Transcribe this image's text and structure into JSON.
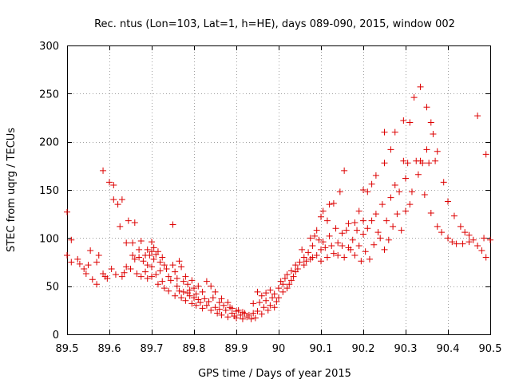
{
  "chart_data": {
    "type": "scatter",
    "title": "Rec. ntus (Lon=103, Lat=1, h=HE), days 089-090, 2015, window 002",
    "xlabel": "GPS time / Days of year 2015",
    "ylabel": "STEC from uqrg / TECUs",
    "xlim": [
      89.5,
      90.5
    ],
    "ylim": [
      0,
      300
    ],
    "xticks": [
      89.5,
      89.6,
      89.7,
      89.8,
      89.9,
      90,
      90.1,
      90.2,
      90.3,
      90.4,
      90.5
    ],
    "xtick_labels": [
      "89.5",
      "89.6",
      "89.7",
      "89.8",
      "89.9",
      "90",
      "90.1",
      "90.2",
      "90.3",
      "90.4",
      "90.5"
    ],
    "yticks": [
      0,
      50,
      100,
      150,
      200,
      250,
      300
    ],
    "ytick_labels": [
      "0",
      "50",
      "100",
      "150",
      "200",
      "250",
      "300"
    ],
    "grid": true,
    "marker": "+",
    "color": "#dd0000",
    "series": [
      {
        "points": [
          [
            89.5,
            127
          ],
          [
            89.5,
            82
          ],
          [
            89.51,
            98
          ],
          [
            89.51,
            75
          ],
          [
            89.525,
            78
          ],
          [
            89.53,
            73
          ],
          [
            89.54,
            68
          ],
          [
            89.545,
            63
          ],
          [
            89.55,
            72
          ],
          [
            89.555,
            87
          ],
          [
            89.56,
            57
          ],
          [
            89.57,
            52
          ],
          [
            89.57,
            75
          ],
          [
            89.575,
            82
          ],
          [
            89.585,
            170
          ],
          [
            89.585,
            63
          ],
          [
            89.59,
            60
          ],
          [
            89.595,
            58
          ],
          [
            89.6,
            158
          ],
          [
            89.605,
            68
          ],
          [
            89.61,
            155
          ],
          [
            89.61,
            140
          ],
          [
            89.615,
            62
          ],
          [
            89.62,
            135
          ],
          [
            89.625,
            112
          ],
          [
            89.63,
            140
          ],
          [
            89.63,
            60
          ],
          [
            89.635,
            64
          ],
          [
            89.64,
            70
          ],
          [
            89.64,
            95
          ],
          [
            89.645,
            118
          ],
          [
            89.65,
            68
          ],
          [
            89.655,
            95
          ],
          [
            89.655,
            82
          ],
          [
            89.66,
            116
          ],
          [
            89.66,
            78
          ],
          [
            89.665,
            63
          ],
          [
            89.67,
            80
          ],
          [
            89.67,
            88
          ],
          [
            89.675,
            60
          ],
          [
            89.675,
            97
          ],
          [
            89.68,
            76
          ],
          [
            89.685,
            82
          ],
          [
            89.685,
            65
          ],
          [
            89.69,
            88
          ],
          [
            89.69,
            72
          ],
          [
            89.69,
            58
          ],
          [
            89.695,
            82
          ],
          [
            89.7,
            96
          ],
          [
            89.7,
            86
          ],
          [
            89.7,
            70
          ],
          [
            89.7,
            60
          ],
          [
            89.705,
            90
          ],
          [
            89.705,
            78
          ],
          [
            89.71,
            83
          ],
          [
            89.71,
            62
          ],
          [
            89.715,
            86
          ],
          [
            89.715,
            52
          ],
          [
            89.72,
            75
          ],
          [
            89.72,
            66
          ],
          [
            89.725,
            80
          ],
          [
            89.725,
            55
          ],
          [
            89.73,
            72
          ],
          [
            89.73,
            48
          ],
          [
            89.735,
            68
          ],
          [
            89.74,
            60
          ],
          [
            89.74,
            45
          ],
          [
            89.745,
            56
          ],
          [
            89.75,
            114
          ],
          [
            89.75,
            72
          ],
          [
            89.755,
            65
          ],
          [
            89.755,
            40
          ],
          [
            89.76,
            58
          ],
          [
            89.76,
            50
          ],
          [
            89.765,
            76
          ],
          [
            89.765,
            45
          ],
          [
            89.77,
            70
          ],
          [
            89.77,
            38
          ],
          [
            89.775,
            55
          ],
          [
            89.775,
            44
          ],
          [
            89.78,
            60
          ],
          [
            89.78,
            35
          ],
          [
            89.785,
            52
          ],
          [
            89.785,
            43
          ],
          [
            89.79,
            46
          ],
          [
            89.79,
            40
          ],
          [
            89.795,
            56
          ],
          [
            89.795,
            32
          ],
          [
            89.8,
            48
          ],
          [
            89.8,
            38
          ],
          [
            89.805,
            42
          ],
          [
            89.805,
            30
          ],
          [
            89.81,
            50
          ],
          [
            89.81,
            36
          ],
          [
            89.815,
            33
          ],
          [
            89.82,
            44
          ],
          [
            89.82,
            27
          ],
          [
            89.825,
            37
          ],
          [
            89.83,
            55
          ],
          [
            89.83,
            30
          ],
          [
            89.835,
            34
          ],
          [
            89.84,
            50
          ],
          [
            89.84,
            25
          ],
          [
            89.845,
            38
          ],
          [
            89.85,
            44
          ],
          [
            89.85,
            28
          ],
          [
            89.855,
            22
          ],
          [
            89.86,
            33
          ],
          [
            89.86,
            26
          ],
          [
            89.865,
            37
          ],
          [
            89.865,
            20
          ],
          [
            89.87,
            30
          ],
          [
            89.875,
            25
          ],
          [
            89.88,
            33
          ],
          [
            89.88,
            18
          ],
          [
            89.885,
            28
          ],
          [
            89.89,
            22
          ],
          [
            89.89,
            27
          ],
          [
            89.895,
            19
          ],
          [
            89.9,
            24
          ],
          [
            89.9,
            17
          ],
          [
            89.905,
            25
          ],
          [
            89.91,
            20
          ],
          [
            89.915,
            23
          ],
          [
            89.915,
            16
          ],
          [
            89.92,
            22
          ],
          [
            89.925,
            18
          ],
          [
            89.93,
            20
          ],
          [
            89.935,
            16
          ],
          [
            89.94,
            32
          ],
          [
            89.94,
            22
          ],
          [
            89.945,
            17
          ],
          [
            89.95,
            44
          ],
          [
            89.95,
            24
          ],
          [
            89.955,
            33
          ],
          [
            89.96,
            40
          ],
          [
            89.96,
            21
          ],
          [
            89.965,
            28
          ],
          [
            89.97,
            43
          ],
          [
            89.97,
            35
          ],
          [
            89.975,
            25
          ],
          [
            89.98,
            46
          ],
          [
            89.98,
            30
          ],
          [
            89.985,
            38
          ],
          [
            89.99,
            42
          ],
          [
            89.99,
            28
          ],
          [
            89.995,
            34
          ],
          [
            90.0,
            48
          ],
          [
            90.0,
            38
          ],
          [
            90.005,
            55
          ],
          [
            90.01,
            52
          ],
          [
            90.01,
            44
          ],
          [
            90.015,
            58
          ],
          [
            90.02,
            48
          ],
          [
            90.02,
            62
          ],
          [
            90.025,
            52
          ],
          [
            90.03,
            56
          ],
          [
            90.03,
            66
          ],
          [
            90.035,
            60
          ],
          [
            90.04,
            72
          ],
          [
            90.04,
            65
          ],
          [
            90.045,
            68
          ],
          [
            90.05,
            75
          ],
          [
            90.055,
            88
          ],
          [
            90.06,
            80
          ],
          [
            90.06,
            72
          ],
          [
            90.065,
            76
          ],
          [
            90.07,
            85
          ],
          [
            90.075,
            100
          ],
          [
            90.075,
            78
          ],
          [
            90.08,
            92
          ],
          [
            90.08,
            80
          ],
          [
            90.085,
            102
          ],
          [
            90.09,
            108
          ],
          [
            90.09,
            82
          ],
          [
            90.095,
            98
          ],
          [
            90.1,
            122
          ],
          [
            90.1,
            88
          ],
          [
            90.1,
            76
          ],
          [
            90.105,
            128
          ],
          [
            90.105,
            96
          ],
          [
            90.11,
            90
          ],
          [
            90.115,
            118
          ],
          [
            90.115,
            80
          ],
          [
            90.12,
            135
          ],
          [
            90.12,
            102
          ],
          [
            90.125,
            92
          ],
          [
            90.13,
            136
          ],
          [
            90.13,
            84
          ],
          [
            90.135,
            110
          ],
          [
            90.14,
            95
          ],
          [
            90.14,
            82
          ],
          [
            90.145,
            148
          ],
          [
            90.15,
            105
          ],
          [
            90.15,
            92
          ],
          [
            90.155,
            170
          ],
          [
            90.155,
            80
          ],
          [
            90.16,
            108
          ],
          [
            90.165,
            115
          ],
          [
            90.165,
            90
          ],
          [
            90.17,
            88
          ],
          [
            90.175,
            98
          ],
          [
            90.18,
            116
          ],
          [
            90.18,
            82
          ],
          [
            90.185,
            108
          ],
          [
            90.19,
            128
          ],
          [
            90.19,
            92
          ],
          [
            90.195,
            76
          ],
          [
            90.2,
            150
          ],
          [
            90.2,
            118
          ],
          [
            90.2,
            104
          ],
          [
            90.205,
            86
          ],
          [
            90.21,
            148
          ],
          [
            90.21,
            110
          ],
          [
            90.215,
            78
          ],
          [
            90.22,
            156
          ],
          [
            90.22,
            118
          ],
          [
            90.225,
            93
          ],
          [
            90.23,
            165
          ],
          [
            90.23,
            125
          ],
          [
            90.235,
            106
          ],
          [
            90.24,
            100
          ],
          [
            90.245,
            135
          ],
          [
            90.25,
            178
          ],
          [
            90.25,
            88
          ],
          [
            90.25,
            210
          ],
          [
            90.255,
            118
          ],
          [
            90.26,
            98
          ],
          [
            90.265,
            192
          ],
          [
            90.265,
            142
          ],
          [
            90.27,
            112
          ],
          [
            90.275,
            155
          ],
          [
            90.275,
            210
          ],
          [
            90.28,
            125
          ],
          [
            90.285,
            148
          ],
          [
            90.29,
            108
          ],
          [
            90.295,
            180
          ],
          [
            90.295,
            222
          ],
          [
            90.3,
            162
          ],
          [
            90.3,
            128
          ],
          [
            90.305,
            178
          ],
          [
            90.31,
            220
          ],
          [
            90.31,
            135
          ],
          [
            90.315,
            148
          ],
          [
            90.32,
            246
          ],
          [
            90.325,
            180
          ],
          [
            90.33,
            166
          ],
          [
            90.335,
            257
          ],
          [
            90.335,
            180
          ],
          [
            90.34,
            178
          ],
          [
            90.345,
            145
          ],
          [
            90.35,
            236
          ],
          [
            90.35,
            192
          ],
          [
            90.355,
            178
          ],
          [
            90.36,
            220
          ],
          [
            90.36,
            126
          ],
          [
            90.365,
            208
          ],
          [
            90.37,
            180
          ],
          [
            90.375,
            190
          ],
          [
            90.375,
            112
          ],
          [
            90.385,
            106
          ],
          [
            90.39,
            158
          ],
          [
            90.4,
            138
          ],
          [
            90.4,
            100
          ],
          [
            90.41,
            96
          ],
          [
            90.415,
            123
          ],
          [
            90.42,
            94
          ],
          [
            90.43,
            112
          ],
          [
            90.435,
            94
          ],
          [
            90.44,
            106
          ],
          [
            90.45,
            103
          ],
          [
            90.45,
            96
          ],
          [
            90.46,
            98
          ],
          [
            90.47,
            227
          ],
          [
            90.47,
            92
          ],
          [
            90.48,
            87
          ],
          [
            90.485,
            100
          ],
          [
            90.49,
            187
          ],
          [
            90.49,
            80
          ],
          [
            90.5,
            98
          ]
        ]
      }
    ]
  }
}
